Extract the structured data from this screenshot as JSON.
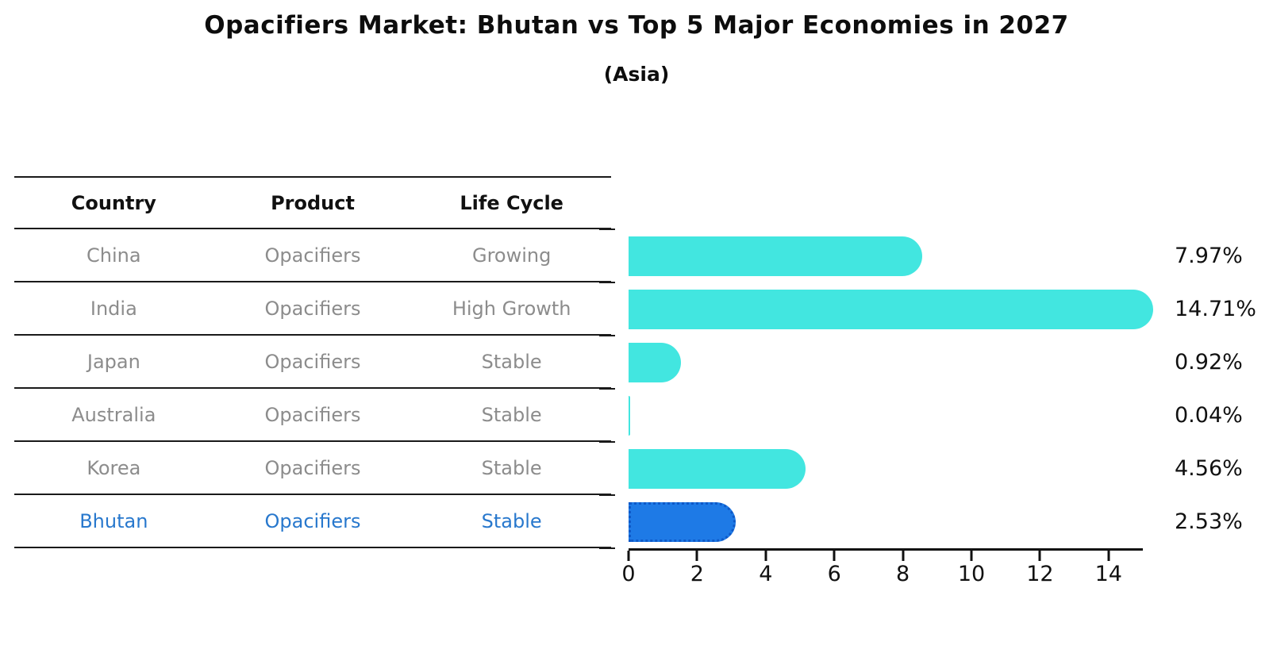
{
  "title": "Opacifiers Market: Bhutan vs Top 5 Major Economies in 2027",
  "subtitle": "(Asia)",
  "table": {
    "headers": [
      "Country",
      "Product",
      "Life Cycle"
    ],
    "rows": [
      {
        "country": "China",
        "product": "Opacifiers",
        "life_cycle": "Growing",
        "highlight": false
      },
      {
        "country": "India",
        "product": "Opacifiers",
        "life_cycle": "High Growth",
        "highlight": false
      },
      {
        "country": "Japan",
        "product": "Opacifiers",
        "life_cycle": "Stable",
        "highlight": false
      },
      {
        "country": "Australia",
        "product": "Opacifiers",
        "life_cycle": "Stable",
        "highlight": false
      },
      {
        "country": "Korea",
        "product": "Opacifiers",
        "life_cycle": "Stable",
        "highlight": false
      },
      {
        "country": "Bhutan",
        "product": "Opacifiers",
        "life_cycle": "Stable",
        "highlight": true
      }
    ]
  },
  "chart_data": {
    "type": "bar",
    "orientation": "horizontal",
    "title": "Opacifiers Market: Bhutan vs Top 5 Major Economies in 2027",
    "subtitle": "(Asia)",
    "categories": [
      "China",
      "India",
      "Japan",
      "Australia",
      "Korea",
      "Bhutan"
    ],
    "values": [
      7.97,
      14.71,
      0.92,
      0.04,
      4.56,
      2.53
    ],
    "value_labels": [
      "7.97%",
      "14.71%",
      "0.92%",
      "0.04%",
      "4.56%",
      "2.53%"
    ],
    "unit": "%",
    "xlim": [
      0,
      15
    ],
    "xticks": [
      0,
      2,
      4,
      6,
      8,
      10,
      12,
      14
    ],
    "grid": false,
    "legend": false,
    "highlight_index": 5
  },
  "colors": {
    "bar": "#42E6E0",
    "highlight_bar": "#1E7AE6",
    "highlight_border": "#0E59C8",
    "highlight_text": "#2878CD",
    "table_text": "#8C8C8C",
    "header_text": "#111111",
    "axis": "#111111",
    "line": "#1A1A1A"
  }
}
